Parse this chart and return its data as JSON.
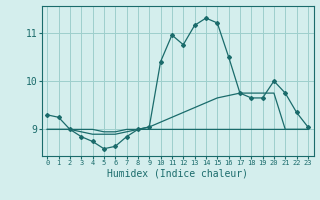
{
  "xlabel": "Humidex (Indice chaleur)",
  "background_color": "#d4eeed",
  "grid_color": "#9ecfcc",
  "line_color": "#1a6b6b",
  "x_ticks": [
    0,
    1,
    2,
    3,
    4,
    5,
    6,
    7,
    8,
    9,
    10,
    11,
    12,
    13,
    14,
    15,
    16,
    17,
    18,
    19,
    20,
    21,
    22,
    23
  ],
  "y_ticks": [
    9,
    10,
    11
  ],
  "ylim": [
    8.45,
    11.55
  ],
  "xlim": [
    -0.5,
    23.5
  ],
  "series1": [
    9.3,
    9.25,
    9.0,
    8.85,
    8.75,
    8.6,
    8.65,
    8.85,
    9.0,
    9.05,
    10.4,
    10.95,
    10.75,
    11.15,
    11.3,
    11.2,
    10.5,
    9.75,
    9.65,
    9.65,
    10.0,
    9.75,
    9.35,
    9.05
  ],
  "series2": [
    9.0,
    9.0,
    9.0,
    8.95,
    8.9,
    8.9,
    8.9,
    8.95,
    9.0,
    9.05,
    9.15,
    9.25,
    9.35,
    9.45,
    9.55,
    9.65,
    9.7,
    9.75,
    9.75,
    9.75,
    9.75,
    9.0,
    9.0,
    9.0
  ],
  "series3": [
    9.0,
    9.0,
    9.0,
    9.0,
    9.0,
    8.95,
    8.95,
    9.0,
    9.0,
    9.0,
    9.0,
    9.0,
    9.0,
    9.0,
    9.0,
    9.0,
    9.0,
    9.0,
    9.0,
    9.0,
    9.0,
    9.0,
    9.0,
    9.0
  ]
}
